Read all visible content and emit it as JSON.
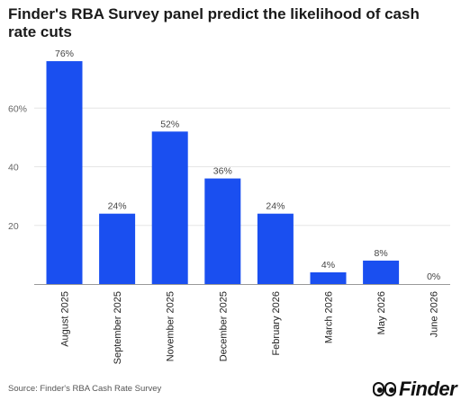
{
  "title": "Finder's RBA Survey panel predict the likelihood of cash rate cuts",
  "source": "Source: Finder's RBA Cash Rate Survey",
  "brand": {
    "name": "Finder",
    "icon": "finder-eyes-logo"
  },
  "colors": {
    "bar": "#1a4ff0",
    "grid": "#e5e5e5",
    "axis": "#999999",
    "tick": "#666666",
    "label": "#444444"
  },
  "chart_data": {
    "type": "bar",
    "categories": [
      "August 2025",
      "September 2025",
      "November 2025",
      "December 2025",
      "February 2026",
      "March 2026",
      "May 2026",
      "June 2026"
    ],
    "values": [
      76,
      24,
      52,
      36,
      24,
      4,
      8,
      0
    ],
    "data_labels": [
      "76%",
      "24%",
      "52%",
      "36%",
      "24%",
      "4%",
      "8%",
      "0%"
    ],
    "y_ticks": [
      20,
      40,
      60
    ],
    "y_tick_labels": [
      "20",
      "40",
      "60%"
    ],
    "ylim": [
      0,
      80
    ],
    "grid": true,
    "title": "Finder's RBA Survey panel predict the likelihood of cash rate cuts",
    "xlabel": "",
    "ylabel": ""
  }
}
